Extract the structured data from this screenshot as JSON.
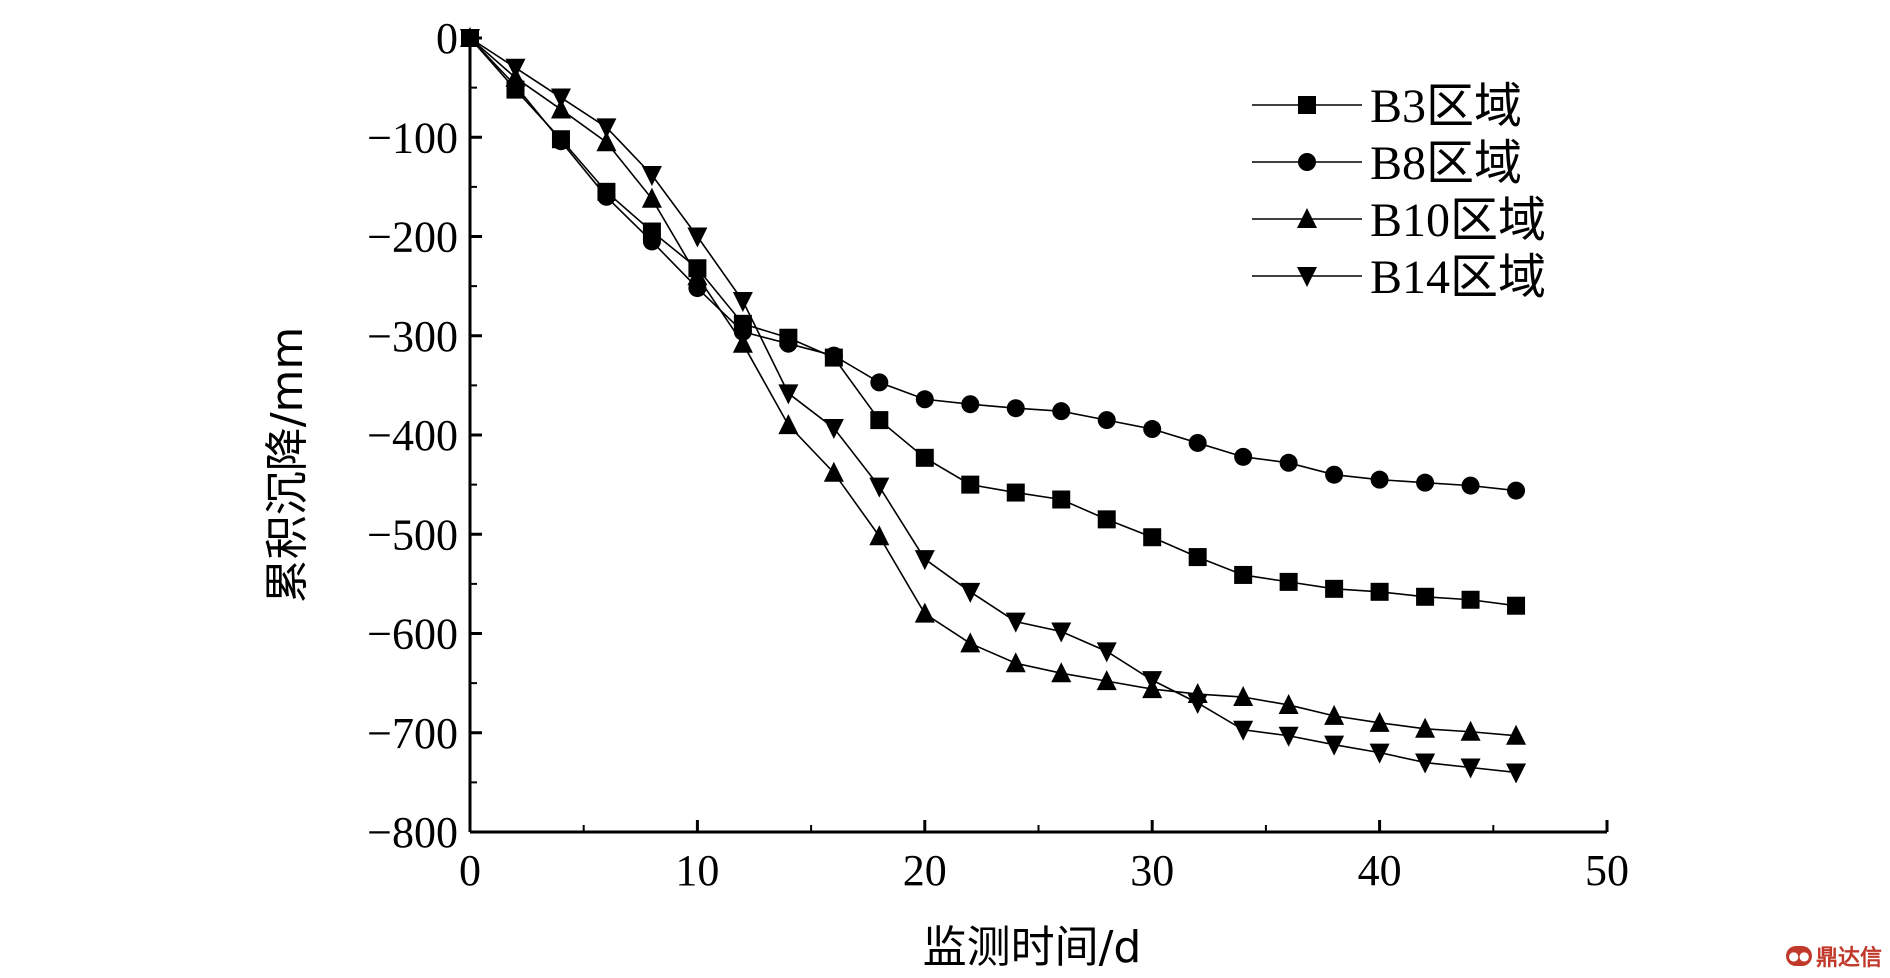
{
  "chart_data": {
    "type": "line",
    "xlabel": "监测时间/d",
    "ylabel": "累积沉降/mm",
    "xlim": [
      0,
      50
    ],
    "ylim": [
      -800,
      0
    ],
    "xticks": [
      "0",
      "10",
      "20",
      "30",
      "40",
      "50"
    ],
    "yticks": [
      "0",
      "−100",
      "−200",
      "−300",
      "−400",
      "−500",
      "−600",
      "−700",
      "−800"
    ],
    "x": [
      0,
      2,
      4,
      6,
      8,
      10,
      12,
      14,
      16,
      18,
      20,
      22,
      24,
      26,
      28,
      30,
      32,
      34,
      36,
      38,
      40,
      42,
      44,
      46
    ],
    "legend_position": "top-right",
    "grid": false,
    "series": [
      {
        "name": "B3区域",
        "marker": "square",
        "values": [
          0,
          -52,
          -102,
          -155,
          -195,
          -232,
          -288,
          -302,
          -322,
          -385,
          -423,
          -450,
          -458,
          -465,
          -485,
          -503,
          -523,
          -541,
          -548,
          -555,
          -558,
          -563,
          -566,
          -572
        ]
      },
      {
        "name": "B8区域",
        "marker": "circle",
        "values": [
          0,
          -48,
          -104,
          -160,
          -205,
          -252,
          -296,
          -308,
          -320,
          -347,
          -364,
          -369,
          -373,
          -376,
          -385,
          -394,
          -408,
          -422,
          -428,
          -440,
          -445,
          -448,
          -451,
          -456
        ]
      },
      {
        "name": "B10区域",
        "marker": "triangle-up",
        "values": [
          0,
          -40,
          -72,
          -105,
          -162,
          -240,
          -308,
          -390,
          -438,
          -502,
          -580,
          -610,
          -630,
          -640,
          -648,
          -656,
          -661,
          -664,
          -672,
          -683,
          -690,
          -696,
          -699,
          -703
        ]
      },
      {
        "name": "B14区域",
        "marker": "triangle-down",
        "values": [
          0,
          -30,
          -60,
          -90,
          -138,
          -200,
          -265,
          -358,
          -393,
          -452,
          -525,
          -558,
          -588,
          -598,
          -618,
          -647,
          -670,
          -697,
          -703,
          -712,
          -720,
          -730,
          -735,
          -740
        ]
      }
    ]
  },
  "watermark": {
    "text": "鼎达信",
    "icon": "chat-bubble-icon"
  }
}
